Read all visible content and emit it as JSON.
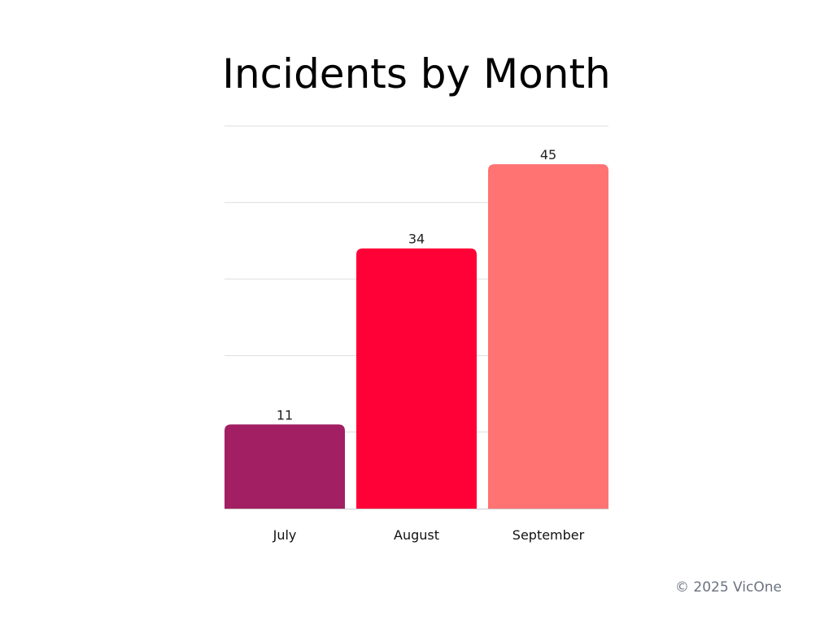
{
  "chart_data": {
    "type": "bar",
    "title": "Incidents by Month",
    "categories": [
      "July",
      "August",
      "September"
    ],
    "values": [
      11,
      34,
      45
    ],
    "colors": [
      "#A21F63",
      "#FF0037",
      "#FF7373"
    ],
    "xlabel": "",
    "ylabel": "",
    "ylim": [
      0,
      50
    ],
    "grid": true,
    "gridlines": [
      10,
      20,
      30,
      40,
      50
    ],
    "data_labels": true
  },
  "footer": "© 2025 VicOne"
}
